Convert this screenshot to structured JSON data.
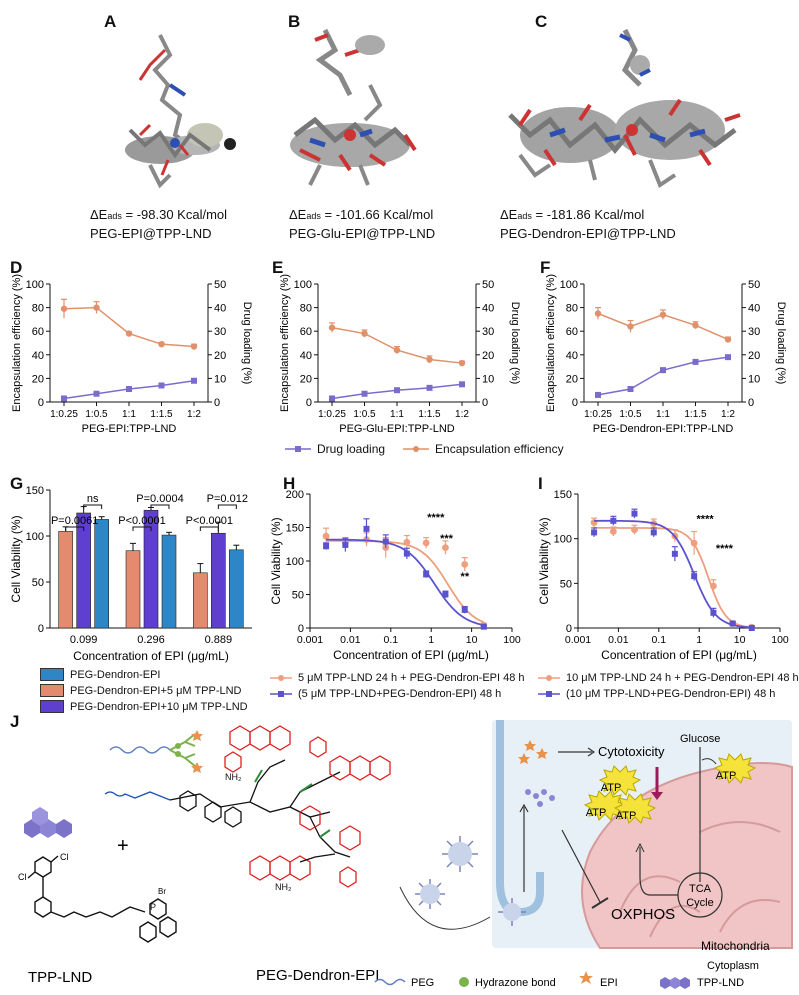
{
  "colors": {
    "orange": "#e0906a",
    "purple": "#7a6ccc",
    "peach": "#ee9f7e",
    "blue": "#5b52cf",
    "teal": "#2f86c7",
    "salmon": "#e48a6e",
    "violet": "#5e3fcf",
    "red": "#e02020",
    "green": "#2e8b3a",
    "cell_bg": "#e8f0f7",
    "mito": "#f1c5c5"
  },
  "panels": {
    "A": {
      "label": "A",
      "prefix": "ΔE",
      "sub": "ads",
      "value": " = -98.30 Kcal/mol",
      "name": "PEG-EPI@TPP-LND"
    },
    "B": {
      "label": "B",
      "prefix": "ΔE",
      "sub": "ads",
      "value": " = -101.66 Kcal/mol",
      "name": "PEG-Glu-EPI@TPP-LND"
    },
    "C": {
      "label": "C",
      "prefix": "ΔE",
      "sub": "ads",
      "value": " = -181.86 Kcal/mol",
      "name": "PEG-Dendron-EPI@TPP-LND"
    },
    "D": {
      "label": "D"
    },
    "E": {
      "label": "E"
    },
    "F": {
      "label": "F"
    },
    "G": {
      "label": "G"
    },
    "H": {
      "label": "H"
    },
    "I": {
      "label": "I"
    },
    "J": {
      "label": "J"
    }
  },
  "def_legend": {
    "drug": "Drug loading",
    "enc": "Encapsulation efficiency"
  },
  "g_legend": [
    "PEG-Dendron-EPI",
    "PEG-Dendron-EPI+5 μM TPP-LND",
    "PEG-Dendron-EPI+10 μM TPP-LND"
  ],
  "h_legend": [
    "5 μM TPP-LND 24 h + PEG-Dendron-EPI 48 h",
    "(5 μM TPP-LND+PEG-Dendron-EPI) 48 h"
  ],
  "i_legend": [
    "10 μM TPP-LND 24 h + PEG-Dendron-EPI 48 h",
    "(10 μM TPP-LND+PEG-Dendron-EPI) 48 h"
  ],
  "scheme": {
    "tpp_lnd": "TPP-LND",
    "peg_dendron_epi": "PEG-Dendron-EPI",
    "plus": "+",
    "cytotoxicity": "Cytotoxicity",
    "glucose": "Glucose",
    "atp": "ATP",
    "oxphos": "OXPHOS",
    "tca": "TCA",
    "cycle": "Cycle",
    "mitochondria": "Mitochondria",
    "cytoplasm": "Cytoplasm",
    "bromide": "Br",
    "legend": {
      "peg": "PEG",
      "hydrazone": "Hydrazone bond",
      "epi": "EPI",
      "tpp": "TPP-LND"
    }
  },
  "chart_data": [
    {
      "id": "D",
      "type": "line",
      "categories": [
        "1:0.25",
        "1:0.5",
        "1:1",
        "1:1.5",
        "1:2"
      ],
      "xlabel": "PEG-EPI:TPP-LND",
      "ylabel": "Encapsulation efficiency (%)",
      "ylabel2": "Drug loading (%)",
      "ylim": [
        0,
        100
      ],
      "y2lim": [
        0,
        50
      ],
      "yticks": [
        "0",
        "20",
        "40",
        "60",
        "80",
        "100"
      ],
      "y2ticks": [
        "0",
        "10",
        "20",
        "30",
        "40",
        "50"
      ],
      "series": [
        {
          "name": "Encapsulation efficiency",
          "axis": "left",
          "values": [
            79,
            80,
            58,
            49,
            47
          ],
          "err": [
            8,
            5,
            1.5,
            1.5,
            2
          ]
        },
        {
          "name": "Drug loading",
          "axis": "right",
          "values": [
            1.5,
            3.5,
            5.5,
            7,
            9
          ],
          "err": [
            0.5,
            0.5,
            0.5,
            0.5,
            0.5
          ]
        }
      ]
    },
    {
      "id": "E",
      "type": "line",
      "categories": [
        "1:0.25",
        "1:0.5",
        "1:1",
        "1:1.5",
        "1:2"
      ],
      "xlabel": "PEG-Glu-EPI:TPP-LND",
      "ylabel": "Encapsulation efficiency (%)",
      "ylabel2": "Drug loading (%)",
      "ylim": [
        0,
        100
      ],
      "y2lim": [
        0,
        50
      ],
      "yticks": [
        "0",
        "20",
        "40",
        "60",
        "80",
        "100"
      ],
      "y2ticks": [
        "0",
        "10",
        "20",
        "30",
        "40",
        "50"
      ],
      "series": [
        {
          "name": "Encapsulation efficiency",
          "axis": "left",
          "values": [
            63,
            58,
            44,
            36,
            33
          ],
          "err": [
            4,
            3,
            3,
            3,
            1.5
          ]
        },
        {
          "name": "Drug loading",
          "axis": "right",
          "values": [
            1.5,
            3.5,
            5,
            6,
            7.5
          ],
          "err": [
            0.5,
            0.5,
            0.5,
            0.5,
            0.5
          ]
        }
      ]
    },
    {
      "id": "F",
      "type": "line",
      "categories": [
        "1:0.25",
        "1:0.5",
        "1:1",
        "1:1.5",
        "1:2"
      ],
      "xlabel": "PEG-Dendron-EPI:TPP-LND",
      "ylabel": "Encapsulation efficiency (%)",
      "ylabel2": "Drug loading (%)",
      "ylim": [
        0,
        100
      ],
      "y2lim": [
        0,
        50
      ],
      "yticks": [
        "0",
        "20",
        "40",
        "60",
        "80",
        "100"
      ],
      "y2ticks": [
        "0",
        "10",
        "20",
        "30",
        "40",
        "50"
      ],
      "series": [
        {
          "name": "Encapsulation efficiency",
          "axis": "left",
          "values": [
            75,
            64,
            74,
            65,
            53
          ],
          "err": [
            5,
            5,
            4,
            3,
            2
          ]
        },
        {
          "name": "Drug loading",
          "axis": "right",
          "values": [
            3,
            5.5,
            13.5,
            17,
            19
          ],
          "err": [
            0.5,
            0.8,
            0.8,
            0.8,
            0.8
          ]
        }
      ]
    },
    {
      "id": "G",
      "type": "bar",
      "categories": [
        "0.099",
        "0.296",
        "0.889"
      ],
      "xlabel": "Concentration of EPI (μg/mL)",
      "ylabel": "Cell Viability (%)",
      "ylim": [
        0,
        150
      ],
      "yticks": [
        "0",
        "50",
        "100",
        "150"
      ],
      "series": [
        {
          "name": "PEG-Dendron-EPI",
          "values": [
            118,
            101,
            85
          ],
          "err": [
            3,
            3,
            5
          ]
        },
        {
          "name": "PEG-Dendron-EPI+5 μM TPP-LND",
          "values": [
            105,
            84,
            60
          ],
          "err": [
            5,
            8,
            10
          ]
        },
        {
          "name": "PEG-Dendron-EPI+10 μM TPP-LND",
          "values": [
            125,
            128,
            103
          ],
          "err": [
            7,
            3,
            12
          ]
        }
      ],
      "annotations": [
        {
          "group": 0,
          "text": "ns",
          "from": 0,
          "to": 2,
          "level": 1
        },
        {
          "group": 0,
          "text": "P=0.0061",
          "from": 1,
          "to": 2,
          "level": 0
        },
        {
          "group": 1,
          "text": "P=0.0004",
          "from": 0,
          "to": 2,
          "level": 1
        },
        {
          "group": 1,
          "text": "P<0.0001",
          "from": 1,
          "to": 2,
          "level": 0
        },
        {
          "group": 2,
          "text": "P=0.012",
          "from": 0,
          "to": 2,
          "level": 1
        },
        {
          "group": 2,
          "text": "P<0.0001",
          "from": 1,
          "to": 2,
          "level": 0
        }
      ]
    },
    {
      "id": "H",
      "type": "scatter",
      "xscale": "log",
      "xlim": [
        0.001,
        100
      ],
      "ylim": [
        0,
        200
      ],
      "xticks": [
        "0.001",
        "0.01",
        "0.1",
        "1",
        "10",
        "100"
      ],
      "yticks": [
        "0",
        "50",
        "100",
        "150",
        "200"
      ],
      "xlabel": "Concentration of EPI (μg/mL)",
      "ylabel": "Cell Viability (%)",
      "series": [
        {
          "name": "5 μM TPP-LND 24 h + PEG-Dendron-EPI 48 h",
          "x": [
            0.0025,
            0.0075,
            0.025,
            0.075,
            0.25,
            0.75,
            2.25,
            6.75,
            20
          ],
          "y": [
            137,
            127,
            132,
            120,
            128,
            127,
            120,
            95,
            4
          ],
          "err": [
            12,
            8,
            10,
            15,
            10,
            8,
            10,
            10,
            3
          ],
          "ic50": 2.6,
          "top": 130,
          "bottom": 0,
          "hill": 1.3
        },
        {
          "name": "(5 μM TPP-LND+PEG-Dendron-EPI) 48 h",
          "x": [
            0.0025,
            0.0075,
            0.025,
            0.075,
            0.25,
            0.75,
            2.25,
            6.75,
            20
          ],
          "y": [
            122,
            124,
            148,
            129,
            111,
            80,
            50,
            27,
            2
          ],
          "err": [
            5,
            10,
            15,
            10,
            8,
            5,
            5,
            5,
            2
          ],
          "ic50": 1.2,
          "top": 132,
          "bottom": 0,
          "hill": 1.2
        }
      ],
      "annotations": [
        {
          "text": "****",
          "x": 1.3,
          "y": 160
        },
        {
          "text": "***",
          "x": 2.4,
          "y": 128
        },
        {
          "text": "**",
          "x": 6.8,
          "y": 72
        }
      ]
    },
    {
      "id": "I",
      "type": "scatter",
      "xscale": "log",
      "xlim": [
        0.001,
        100
      ],
      "ylim": [
        0,
        150
      ],
      "xticks": [
        "0.001",
        "0.01",
        "0.1",
        "1",
        "10",
        "100"
      ],
      "yticks": [
        "0",
        "50",
        "100",
        "150"
      ],
      "xlabel": "Concentration of EPI (μg/mL)",
      "ylabel": "Cell Viability (%)",
      "series": [
        {
          "name": "10 μM TPP-LND 24 h + PEG-Dendron-EPI 48 h",
          "x": [
            0.0025,
            0.0075,
            0.025,
            0.075,
            0.25,
            0.75,
            2.25,
            6.75,
            20
          ],
          "y": [
            118,
            108,
            110,
            117,
            103,
            95,
            47,
            5,
            1
          ],
          "err": [
            5,
            5,
            5,
            5,
            7,
            13,
            7,
            2,
            1
          ],
          "ic50": 1.7,
          "top": 112,
          "bottom": 0,
          "hill": 2.0
        },
        {
          "name": "(10 μM TPP-LND+PEG-Dendron-EPI) 48 h",
          "x": [
            0.0025,
            0.0075,
            0.025,
            0.075,
            0.25,
            0.75,
            2.25,
            6.75,
            20
          ],
          "y": [
            107,
            120,
            128,
            107,
            83,
            58,
            17,
            5,
            0
          ],
          "err": [
            5,
            5,
            5,
            5,
            8,
            5,
            5,
            2,
            1
          ],
          "ic50": 0.75,
          "top": 120,
          "bottom": 0,
          "hill": 1.6
        }
      ],
      "annotations": [
        {
          "text": "****",
          "x": 1.4,
          "y": 118
        },
        {
          "text": "****",
          "x": 4.2,
          "y": 85
        }
      ]
    }
  ]
}
